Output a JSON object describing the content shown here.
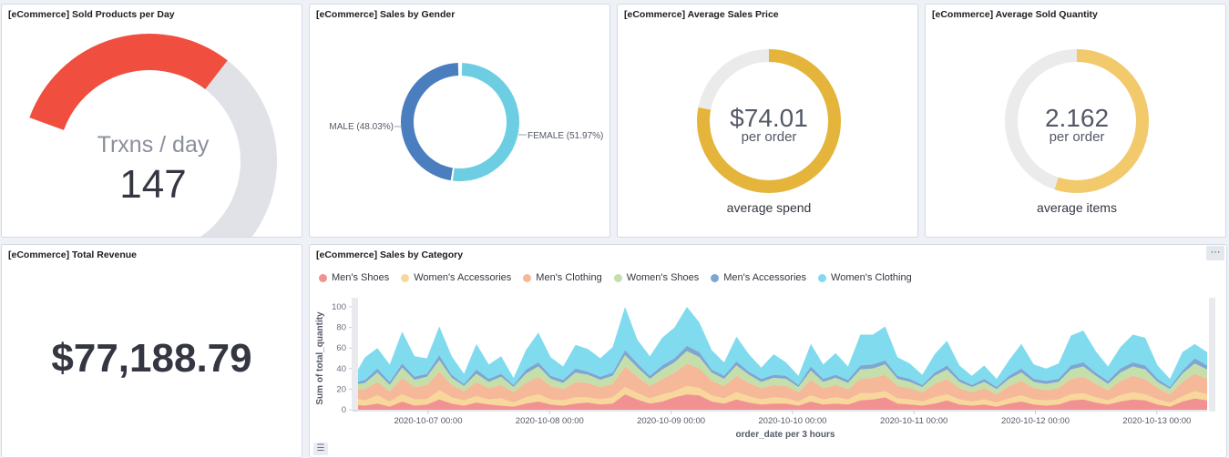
{
  "panels": {
    "sold_products": {
      "title": "[eCommerce] Sold Products per Day",
      "label": "Trxns / day",
      "value": "147",
      "gauge_fraction": 0.49,
      "fill_color": "#f04e3e",
      "track_color": "#e0e2e7"
    },
    "sales_gender": {
      "title": "[eCommerce] Sales by Gender",
      "slices": [
        {
          "label": "MALE (48.03%)",
          "percent": 48.03,
          "color": "#4a7ebf"
        },
        {
          "label": "FEMALE (51.97%)",
          "percent": 51.97,
          "color": "#6dcde3"
        }
      ]
    },
    "avg_price": {
      "title": "[eCommerce] Average Sales Price",
      "value": "$74.01",
      "unit": "per order",
      "caption": "average spend",
      "gauge_fraction": 0.78,
      "fill_color": "#e5b43a",
      "track_color": "#ebebeb"
    },
    "avg_quantity": {
      "title": "[eCommerce] Average Sold Quantity",
      "value": "2.162",
      "unit": "per order",
      "caption": "average items",
      "gauge_fraction": 0.55,
      "fill_color": "#f2c96b",
      "track_color": "#ebebeb"
    },
    "total_revenue": {
      "title": "[eCommerce] Total Revenue",
      "value": "$77,188.79"
    },
    "sales_category": {
      "title": "[eCommerce] Sales by Category",
      "menu_icon": "ellipsis-icon",
      "list_icon": "list-icon"
    }
  },
  "chart_data": {
    "type": "area",
    "stacked": true,
    "xlabel": "order_date per 3 hours",
    "ylabel": "Sum of total_quantity",
    "ylim": [
      0,
      100
    ],
    "yticks": [
      0,
      20,
      40,
      60,
      80,
      100
    ],
    "xticks": [
      "2020-10-07 00:00",
      "2020-10-08 00:00",
      "2020-10-09 00:00",
      "2020-10-10 00:00",
      "2020-10-11 00:00",
      "2020-10-12 00:00",
      "2020-10-13 00:00"
    ],
    "legend_position": "top-left",
    "series": [
      {
        "name": "Men's Shoes",
        "color": "#f29191",
        "values": [
          5,
          4,
          6,
          3,
          8,
          4,
          5,
          10,
          6,
          4,
          7,
          5,
          4,
          3,
          6,
          8,
          5,
          4,
          6,
          7,
          5,
          6,
          15,
          10,
          6,
          8,
          12,
          15,
          14,
          8,
          6,
          10,
          7,
          5,
          6,
          6,
          4,
          8,
          5,
          6,
          5,
          9,
          10,
          12,
          6,
          5,
          4,
          6,
          9,
          5,
          4,
          5,
          3,
          6,
          8,
          5,
          4,
          5,
          9,
          10,
          7,
          5,
          8,
          10,
          9,
          5,
          3,
          8,
          11,
          9
        ]
      },
      {
        "name": "Women's Accessories",
        "color": "#f7d79a",
        "values": [
          6,
          5,
          8,
          5,
          7,
          6,
          5,
          9,
          6,
          5,
          6,
          5,
          7,
          4,
          6,
          7,
          5,
          5,
          6,
          5,
          5,
          6,
          7,
          6,
          5,
          7,
          6,
          8,
          7,
          6,
          5,
          7,
          6,
          5,
          6,
          5,
          4,
          6,
          5,
          6,
          5,
          7,
          6,
          6,
          5,
          5,
          4,
          6,
          6,
          5,
          4,
          5,
          4,
          5,
          6,
          5,
          5,
          5,
          6,
          6,
          5,
          4,
          6,
          7,
          6,
          5,
          4,
          5,
          7,
          6
        ]
      },
      {
        "name": "Men's Clothing",
        "color": "#f5b899",
        "values": [
          9,
          11,
          13,
          10,
          16,
          12,
          14,
          18,
          12,
          9,
          14,
          11,
          13,
          10,
          14,
          17,
          13,
          11,
          15,
          14,
          12,
          13,
          20,
          16,
          12,
          15,
          18,
          22,
          19,
          14,
          12,
          16,
          13,
          11,
          12,
          12,
          9,
          15,
          11,
          12,
          10,
          14,
          15,
          16,
          12,
          11,
          9,
          13,
          15,
          11,
          9,
          11,
          8,
          12,
          14,
          11,
          10,
          11,
          15,
          16,
          13,
          10,
          14,
          16,
          15,
          11,
          8,
          14,
          17,
          15
        ]
      },
      {
        "name": "Women's Shoes",
        "color": "#c4dfa9",
        "values": [
          4,
          6,
          9,
          6,
          10,
          7,
          8,
          11,
          7,
          5,
          8,
          6,
          8,
          5,
          9,
          10,
          7,
          6,
          9,
          8,
          7,
          8,
          11,
          9,
          7,
          9,
          10,
          12,
          11,
          8,
          7,
          10,
          8,
          6,
          7,
          7,
          5,
          9,
          6,
          7,
          6,
          9,
          9,
          10,
          7,
          6,
          5,
          8,
          9,
          6,
          5,
          6,
          5,
          7,
          8,
          6,
          6,
          6,
          9,
          10,
          8,
          6,
          8,
          9,
          9,
          6,
          5,
          8,
          10,
          9
        ]
      },
      {
        "name": "Men's Accessories",
        "color": "#7ea6d3",
        "values": [
          2,
          3,
          4,
          3,
          4,
          3,
          3,
          5,
          3,
          2,
          4,
          3,
          3,
          2,
          4,
          4,
          3,
          3,
          4,
          3,
          3,
          3,
          5,
          4,
          3,
          4,
          4,
          5,
          5,
          3,
          3,
          4,
          3,
          3,
          3,
          3,
          2,
          4,
          3,
          3,
          3,
          4,
          4,
          4,
          3,
          3,
          2,
          3,
          4,
          3,
          2,
          3,
          2,
          3,
          4,
          3,
          3,
          3,
          4,
          4,
          3,
          3,
          4,
          4,
          4,
          3,
          2,
          3,
          5,
          4
        ]
      },
      {
        "name": "Women's Clothing",
        "color": "#80dbee",
        "values": [
          4,
          22,
          20,
          17,
          31,
          20,
          15,
          28,
          18,
          10,
          25,
          14,
          17,
          7,
          19,
          29,
          18,
          13,
          23,
          22,
          18,
          25,
          42,
          23,
          19,
          27,
          30,
          38,
          29,
          19,
          13,
          24,
          17,
          11,
          20,
          13,
          9,
          22,
          14,
          21,
          13,
          30,
          29,
          33,
          18,
          15,
          10,
          18,
          24,
          13,
          9,
          13,
          8,
          15,
          24,
          14,
          12,
          15,
          29,
          31,
          21,
          14,
          21,
          27,
          27,
          13,
          8,
          18,
          14,
          13
        ]
      }
    ]
  }
}
